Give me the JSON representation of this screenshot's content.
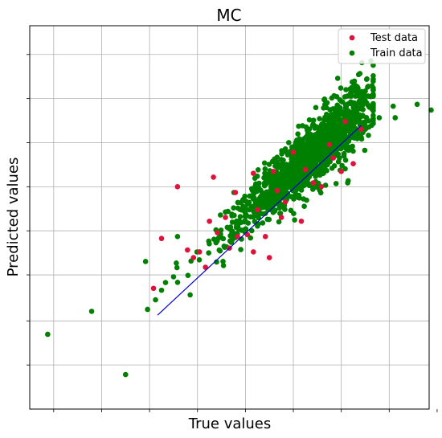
{
  "chart_data": {
    "type": "scatter",
    "title": "MC",
    "xlabel": "True values",
    "ylabel": "Predicted values",
    "xlim": [
      0,
      10
    ],
    "ylim": [
      0,
      10
    ],
    "grid": true,
    "legend_position": "top-right",
    "tick_labels_visible": false,
    "x_ticks": [
      0.6,
      1.8,
      3.0,
      4.2,
      5.4,
      6.6,
      7.8,
      9.0,
      10.2
    ],
    "y_ticks": [
      9.25,
      8.1,
      6.95,
      5.8,
      4.65,
      3.5,
      2.3,
      1.15
    ],
    "series": [
      {
        "name": "Test data",
        "color": "#dc143c",
        "points": [
          [
            4.6,
            6.05
          ],
          [
            3.7,
            5.8
          ],
          [
            3.1,
            3.15
          ],
          [
            6.0,
            3.95
          ],
          [
            5.6,
            4.1
          ],
          [
            5.9,
            4.5
          ],
          [
            6.8,
            4.9
          ],
          [
            7.8,
            6.2
          ],
          [
            8.1,
            6.4
          ],
          [
            3.3,
            4.45
          ],
          [
            4.25,
            4.1
          ],
          [
            4.1,
            3.95
          ],
          [
            5.15,
            5.65
          ],
          [
            6.3,
            5.0
          ],
          [
            7.3,
            5.8
          ],
          [
            5.45,
            4.55
          ],
          [
            4.9,
            5.0
          ],
          [
            6.9,
            6.25
          ],
          [
            7.5,
            6.9
          ],
          [
            7.9,
            7.5
          ],
          [
            5.6,
            6.15
          ],
          [
            6.1,
            6.2
          ],
          [
            5.2,
            4.5
          ],
          [
            4.4,
            3.7
          ],
          [
            3.95,
            4.15
          ],
          [
            6.4,
            5.4
          ],
          [
            7.1,
            5.9
          ],
          [
            5.0,
            4.2
          ],
          [
            5.7,
            5.2
          ],
          [
            6.6,
            6.7
          ],
          [
            4.7,
            4.6
          ],
          [
            7.6,
            6.55
          ],
          [
            8.3,
            7.3
          ],
          [
            4.5,
            4.9
          ],
          [
            6.2,
            5.7
          ]
        ]
      },
      {
        "name": "Train data",
        "color": "#008000",
        "points": [
          [
            0.45,
            1.95
          ],
          [
            1.55,
            2.55
          ],
          [
            2.95,
            2.6
          ],
          [
            2.9,
            3.85
          ],
          [
            3.7,
            4.5
          ],
          [
            9.7,
            7.95
          ],
          [
            10.05,
            7.8
          ],
          [
            9.15,
            7.6
          ],
          [
            9.1,
            7.9
          ],
          [
            8.75,
            7.6
          ],
          [
            8.2,
            7.7
          ],
          [
            3.3,
            3.1
          ],
          [
            3.4,
            3.3
          ],
          [
            3.6,
            3.45
          ],
          [
            3.15,
            2.85
          ],
          [
            8.4,
            7.3
          ],
          [
            8.6,
            7.45
          ],
          [
            8.0,
            7.05
          ],
          [
            2.4,
            0.9
          ]
        ]
      }
    ],
    "fit_line": {
      "color": "#0000cd",
      "from": [
        3.2,
        2.45
      ],
      "to": [
        8.3,
        7.4
      ]
    },
    "cluster": {
      "description": "dense train point cloud along the diagonal",
      "x_range": [
        3.3,
        8.6
      ],
      "center_slope": 0.95,
      "n_points": 1400
    }
  }
}
